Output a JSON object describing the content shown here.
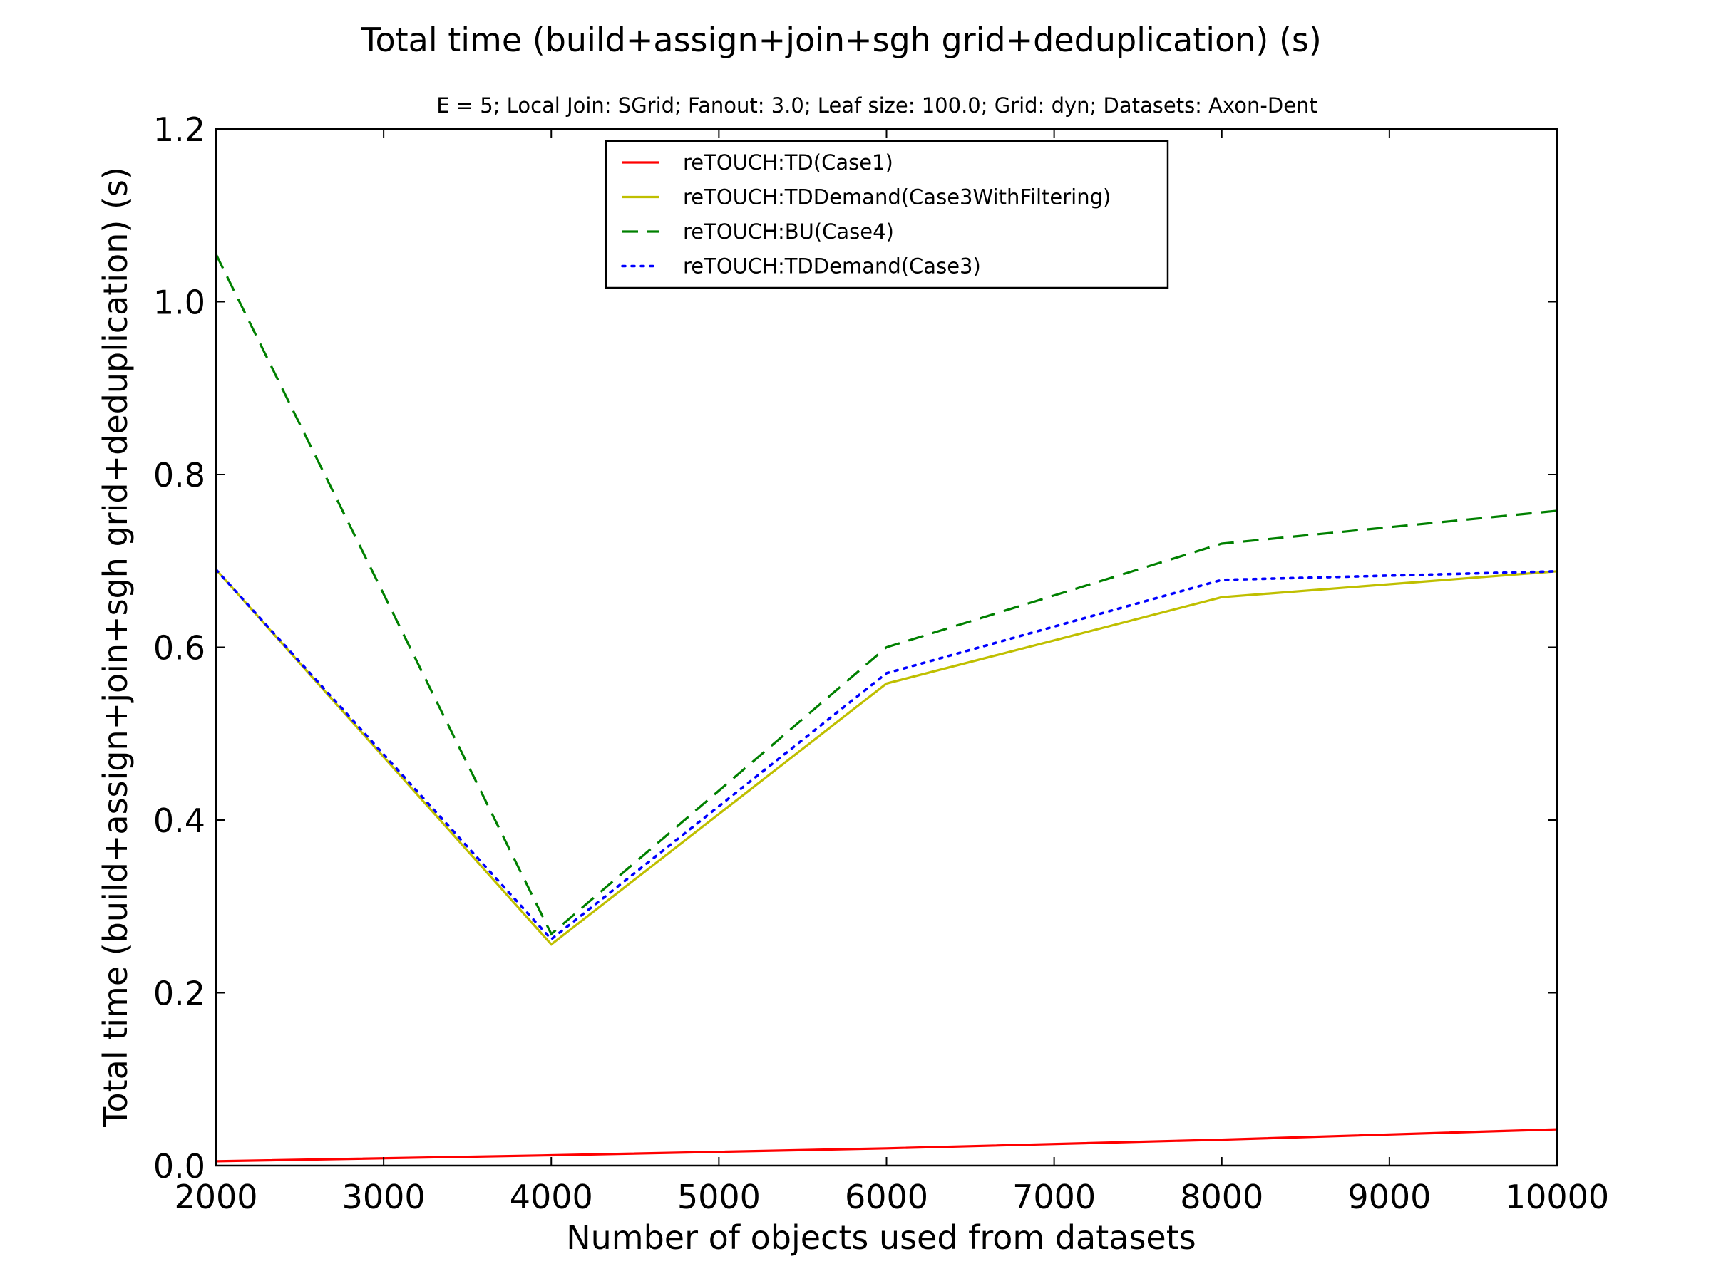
{
  "chart_data": {
    "type": "line",
    "title": "Total time (build+assign+join+sgh grid+deduplication) (s)",
    "subtitle": "E = 5; Local Join: SGrid; Fanout: 3.0; Leaf size: 100.0; Grid: dyn; Datasets: Axon-Dent",
    "xlabel": "Number of objects used from datasets",
    "ylabel": "Total time (build+assign+join+sgh grid+deduplication) (s)",
    "xlim": [
      2000,
      10000
    ],
    "ylim": [
      0.0,
      1.2
    ],
    "x_ticks": [
      2000,
      3000,
      4000,
      5000,
      6000,
      7000,
      8000,
      9000,
      10000
    ],
    "x_tick_labels": [
      "2000",
      "3000",
      "4000",
      "5000",
      "6000",
      "7000",
      "8000",
      "9000",
      "10000"
    ],
    "y_ticks": [
      0.0,
      0.2,
      0.4,
      0.6,
      0.8,
      1.0,
      1.2
    ],
    "y_tick_labels": [
      "0.0",
      "0.2",
      "0.4",
      "0.6",
      "0.8",
      "1.0",
      "1.2"
    ],
    "grid": false,
    "legend_position": "top-center",
    "x": [
      2000,
      4000,
      6000,
      8000,
      10000
    ],
    "series": [
      {
        "name": "reTOUCH:TD(Case1)",
        "color": "#ff0000",
        "style": "solid",
        "values": [
          0.005,
          0.012,
          0.02,
          0.03,
          0.042
        ]
      },
      {
        "name": "reTOUCH:TDDemand(Case3WithFiltering)",
        "color": "#bfbf00",
        "style": "solid",
        "values": [
          0.69,
          0.256,
          0.558,
          0.658,
          0.688
        ]
      },
      {
        "name": "reTOUCH:BU(Case4)",
        "color": "#008000",
        "style": "dashed",
        "values": [
          1.055,
          0.268,
          0.6,
          0.72,
          0.758
        ]
      },
      {
        "name": "reTOUCH:TDDemand(Case3)",
        "color": "#0000ff",
        "style": "dotted",
        "values": [
          0.69,
          0.262,
          0.57,
          0.678,
          0.688
        ]
      }
    ]
  }
}
